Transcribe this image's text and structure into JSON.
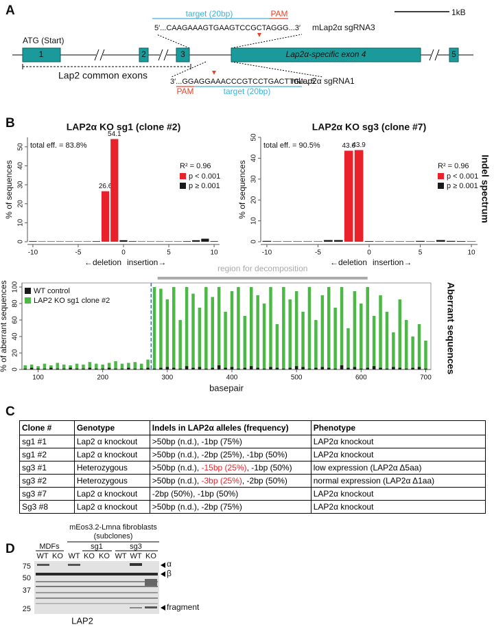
{
  "panel_a": {
    "label": "A",
    "scale_bar": "1kB",
    "sgRNA3": {
      "target": "target (20bp)",
      "pam": "PAM",
      "sequence": "5′...CAAGAAAGTGAAGTCCGCTAGGG...3′",
      "name": "mLap2α sgRNA3"
    },
    "start": "ATG (Start)",
    "exons": [
      "1",
      "2",
      "3",
      "Lap2α-specific exon 4",
      "5"
    ],
    "common_exons": "Lap2 common exons",
    "sgRNA1": {
      "target": "target (20bp)",
      "pam": "PAM",
      "sequence": "3′...GGAGGAAACCCGTCCTGACTTGA...5′",
      "name": "mLap2α sgRNA1"
    }
  },
  "panel_b": {
    "label": "B",
    "side_labels": [
      "Indel spectrum",
      "Aberrant sequences"
    ]
  },
  "chart_data": [
    {
      "type": "bar",
      "title": "LAP2α KO sg1 (clone #2)",
      "y_label": "% of sequences",
      "x_label": [
        "←deletion",
        "insertion→"
      ],
      "annotations": [
        "total eff. = 83.8%",
        "R² = 0.96"
      ],
      "legend": "top-right",
      "x": [
        -10,
        -9,
        -8,
        -7,
        -6,
        -5,
        -4,
        -3,
        -2,
        -1,
        0,
        1,
        2,
        3,
        4,
        5,
        6,
        7,
        8,
        9,
        10
      ],
      "series": [
        {
          "name": "p < 0.001",
          "color": "#e8212a",
          "show_value_labels": true,
          "values": [
            null,
            null,
            null,
            null,
            null,
            null,
            null,
            null,
            26.6,
            54.1,
            null,
            null,
            null,
            null,
            null,
            null,
            null,
            null,
            null,
            null,
            null
          ]
        },
        {
          "name": "p ≥ 0.001",
          "color": "#1a1a1a",
          "values": [
            0.3,
            0.2,
            0.2,
            0.2,
            0.2,
            0.2,
            0.2,
            0.3,
            null,
            null,
            0.8,
            0.3,
            0.2,
            0.2,
            0.2,
            0.2,
            0.2,
            0.3,
            0.8,
            1.6,
            0.3
          ]
        }
      ],
      "xlim": [
        -10.6,
        10.6
      ],
      "ylim": [
        0,
        55
      ],
      "xticks": [
        -10,
        -5,
        0,
        5,
        10
      ],
      "yticks": [
        0,
        10,
        20,
        30,
        40,
        50
      ]
    },
    {
      "type": "bar",
      "title": "LAP2α KO sg3 (clone #7)",
      "y_label": "% of sequences",
      "x_label": [
        "←deletion",
        "insertion→"
      ],
      "annotations": [
        "total eff. = 90.5%",
        "R² = 0.96"
      ],
      "legend": "top-right",
      "x": [
        -10,
        -9,
        -8,
        -7,
        -6,
        -5,
        -4,
        -3,
        -2,
        -1,
        0,
        1,
        2,
        3,
        4,
        5,
        6,
        7,
        8,
        9,
        10
      ],
      "series": [
        {
          "name": "p < 0.001",
          "color": "#e8212a",
          "show_value_labels": true,
          "values": [
            null,
            null,
            null,
            null,
            null,
            null,
            null,
            null,
            43.6,
            43.9,
            null,
            null,
            null,
            null,
            null,
            null,
            null,
            null,
            null,
            null,
            null
          ]
        },
        {
          "name": "p ≥ 0.001",
          "color": "#1a1a1a",
          "values": [
            0.4,
            0.2,
            0.2,
            0.2,
            0.2,
            0.2,
            0.8,
            0.8,
            null,
            null,
            0.3,
            0.2,
            0.2,
            0.2,
            0.2,
            0.4,
            0.2,
            0.8,
            0.4,
            0.3,
            0.2
          ]
        }
      ],
      "xlim": [
        -10.6,
        10.6
      ],
      "ylim": [
        0,
        50
      ],
      "xticks": [
        -10,
        -5,
        0,
        5,
        10
      ],
      "yticks": [
        0,
        10,
        20,
        30,
        40,
        50
      ]
    },
    {
      "type": "bar",
      "y_label": "% of aberrant sequences",
      "x_label": "basepair",
      "legend": "top-left",
      "frame": true,
      "cut_site": 275,
      "cut_color": "#3a6ea5",
      "region": {
        "label": "region for decomposition",
        "range": [
          285,
          610
        ],
        "color": "#aaaaaa"
      },
      "x": [
        80,
        90,
        100,
        110,
        120,
        130,
        140,
        150,
        160,
        170,
        180,
        190,
        200,
        210,
        220,
        230,
        240,
        250,
        260,
        270,
        280,
        290,
        300,
        310,
        320,
        330,
        340,
        350,
        360,
        370,
        380,
        390,
        400,
        410,
        420,
        430,
        440,
        450,
        460,
        470,
        480,
        490,
        500,
        510,
        520,
        530,
        540,
        550,
        560,
        570,
        580,
        590,
        600,
        610,
        620,
        630,
        640,
        650,
        660,
        670,
        680,
        690,
        700
      ],
      "series": [
        {
          "name": "LAP2 KO sg1 clone #2",
          "color": "#4db848",
          "values": [
            5,
            6,
            4,
            7,
            5,
            8,
            6,
            5,
            7,
            6,
            9,
            7,
            6,
            8,
            10,
            7,
            8,
            9,
            7,
            12,
            100,
            98,
            85,
            100,
            60,
            100,
            92,
            75,
            100,
            88,
            100,
            70,
            95,
            100,
            65,
            100,
            90,
            80,
            100,
            55,
            100,
            85,
            95,
            70,
            100,
            60,
            90,
            100,
            75,
            100,
            50,
            95,
            80,
            100,
            65,
            90,
            70,
            45,
            85,
            60,
            40,
            55,
            35
          ]
        },
        {
          "name": "WT control",
          "color": "#1a1a1a",
          "values": [
            1,
            2,
            1,
            1,
            2,
            1,
            1,
            2,
            1,
            1,
            2,
            1,
            1,
            2,
            1,
            1,
            2,
            1,
            1,
            2,
            1,
            2,
            3,
            2,
            1,
            4,
            2,
            3,
            1,
            2,
            5,
            2,
            3,
            1,
            2,
            4,
            2,
            1,
            3,
            2,
            1,
            2,
            4,
            3,
            1,
            2,
            3,
            2,
            1,
            5,
            2,
            3,
            1,
            2,
            4,
            2,
            1,
            3,
            2,
            1,
            2,
            3,
            1
          ]
        }
      ],
      "xlim": [
        75,
        708
      ],
      "ylim": [
        0,
        105
      ],
      "xticks": [
        100,
        200,
        300,
        400,
        500,
        600,
        700
      ],
      "yticks": [
        0,
        20,
        40,
        60,
        80,
        100
      ]
    }
  ],
  "panel_c": {
    "label": "C",
    "table": {
      "header": [
        "Clone #",
        "Genotype",
        "Indels in LAP2α alleles (frequency)",
        "Phenotype"
      ],
      "rows": [
        [
          "sg1 #1",
          "Lap2 α knockout",
          ">50bp (n.d.), -1bp (75%)",
          "LAP2α knockout"
        ],
        [
          "sg1 #2",
          "Lap2 α knockout",
          ">50bp (n.d.), -2bp (25%), -1bp (50%)",
          "LAP2α knockout"
        ],
        [
          "sg3 #1",
          "Heterozygous",
          [
            {
              "text": ">50bp (n.d.), "
            },
            {
              "text": "-15bp (25%)",
              "color": "#e8212a"
            },
            {
              "text": ", -1bp (50%)"
            }
          ],
          "low expression (LAP2α Δ5aa)"
        ],
        [
          "sg3 #2",
          "Heterozygous",
          [
            {
              "text": ">50bp (n.d.), "
            },
            {
              "text": "-3bp (25%)",
              "color": "#e8212a"
            },
            {
              "text": ", -2bp (50%)"
            }
          ],
          "normal expression (LAP2α Δ1aa)"
        ],
        [
          "sg3 #7",
          "Lap2 α knockout",
          "-2bp (50%), -1bp (50%)",
          "LAP2α knockout"
        ],
        [
          "Sg3 #8",
          "Lap2 α knockout",
          ">50bp (n.d.), -2bp (75%)",
          "LAP2α knockout"
        ]
      ]
    }
  },
  "panel_d": {
    "label": "D",
    "cells": "mEos3.2-Lmna fibroblasts",
    "subclones": "(subclones)",
    "mdfs": "MDFs",
    "groups": [
      "sg1",
      "sg3"
    ],
    "lanes": [
      "WT",
      "KO",
      "WT",
      "KO",
      "KO",
      "WT",
      "WT",
      "KO"
    ],
    "markers": [
      75,
      50,
      37,
      25
    ],
    "bands": [
      "α",
      "β",
      "fragment"
    ],
    "antibody": "LAP2"
  }
}
